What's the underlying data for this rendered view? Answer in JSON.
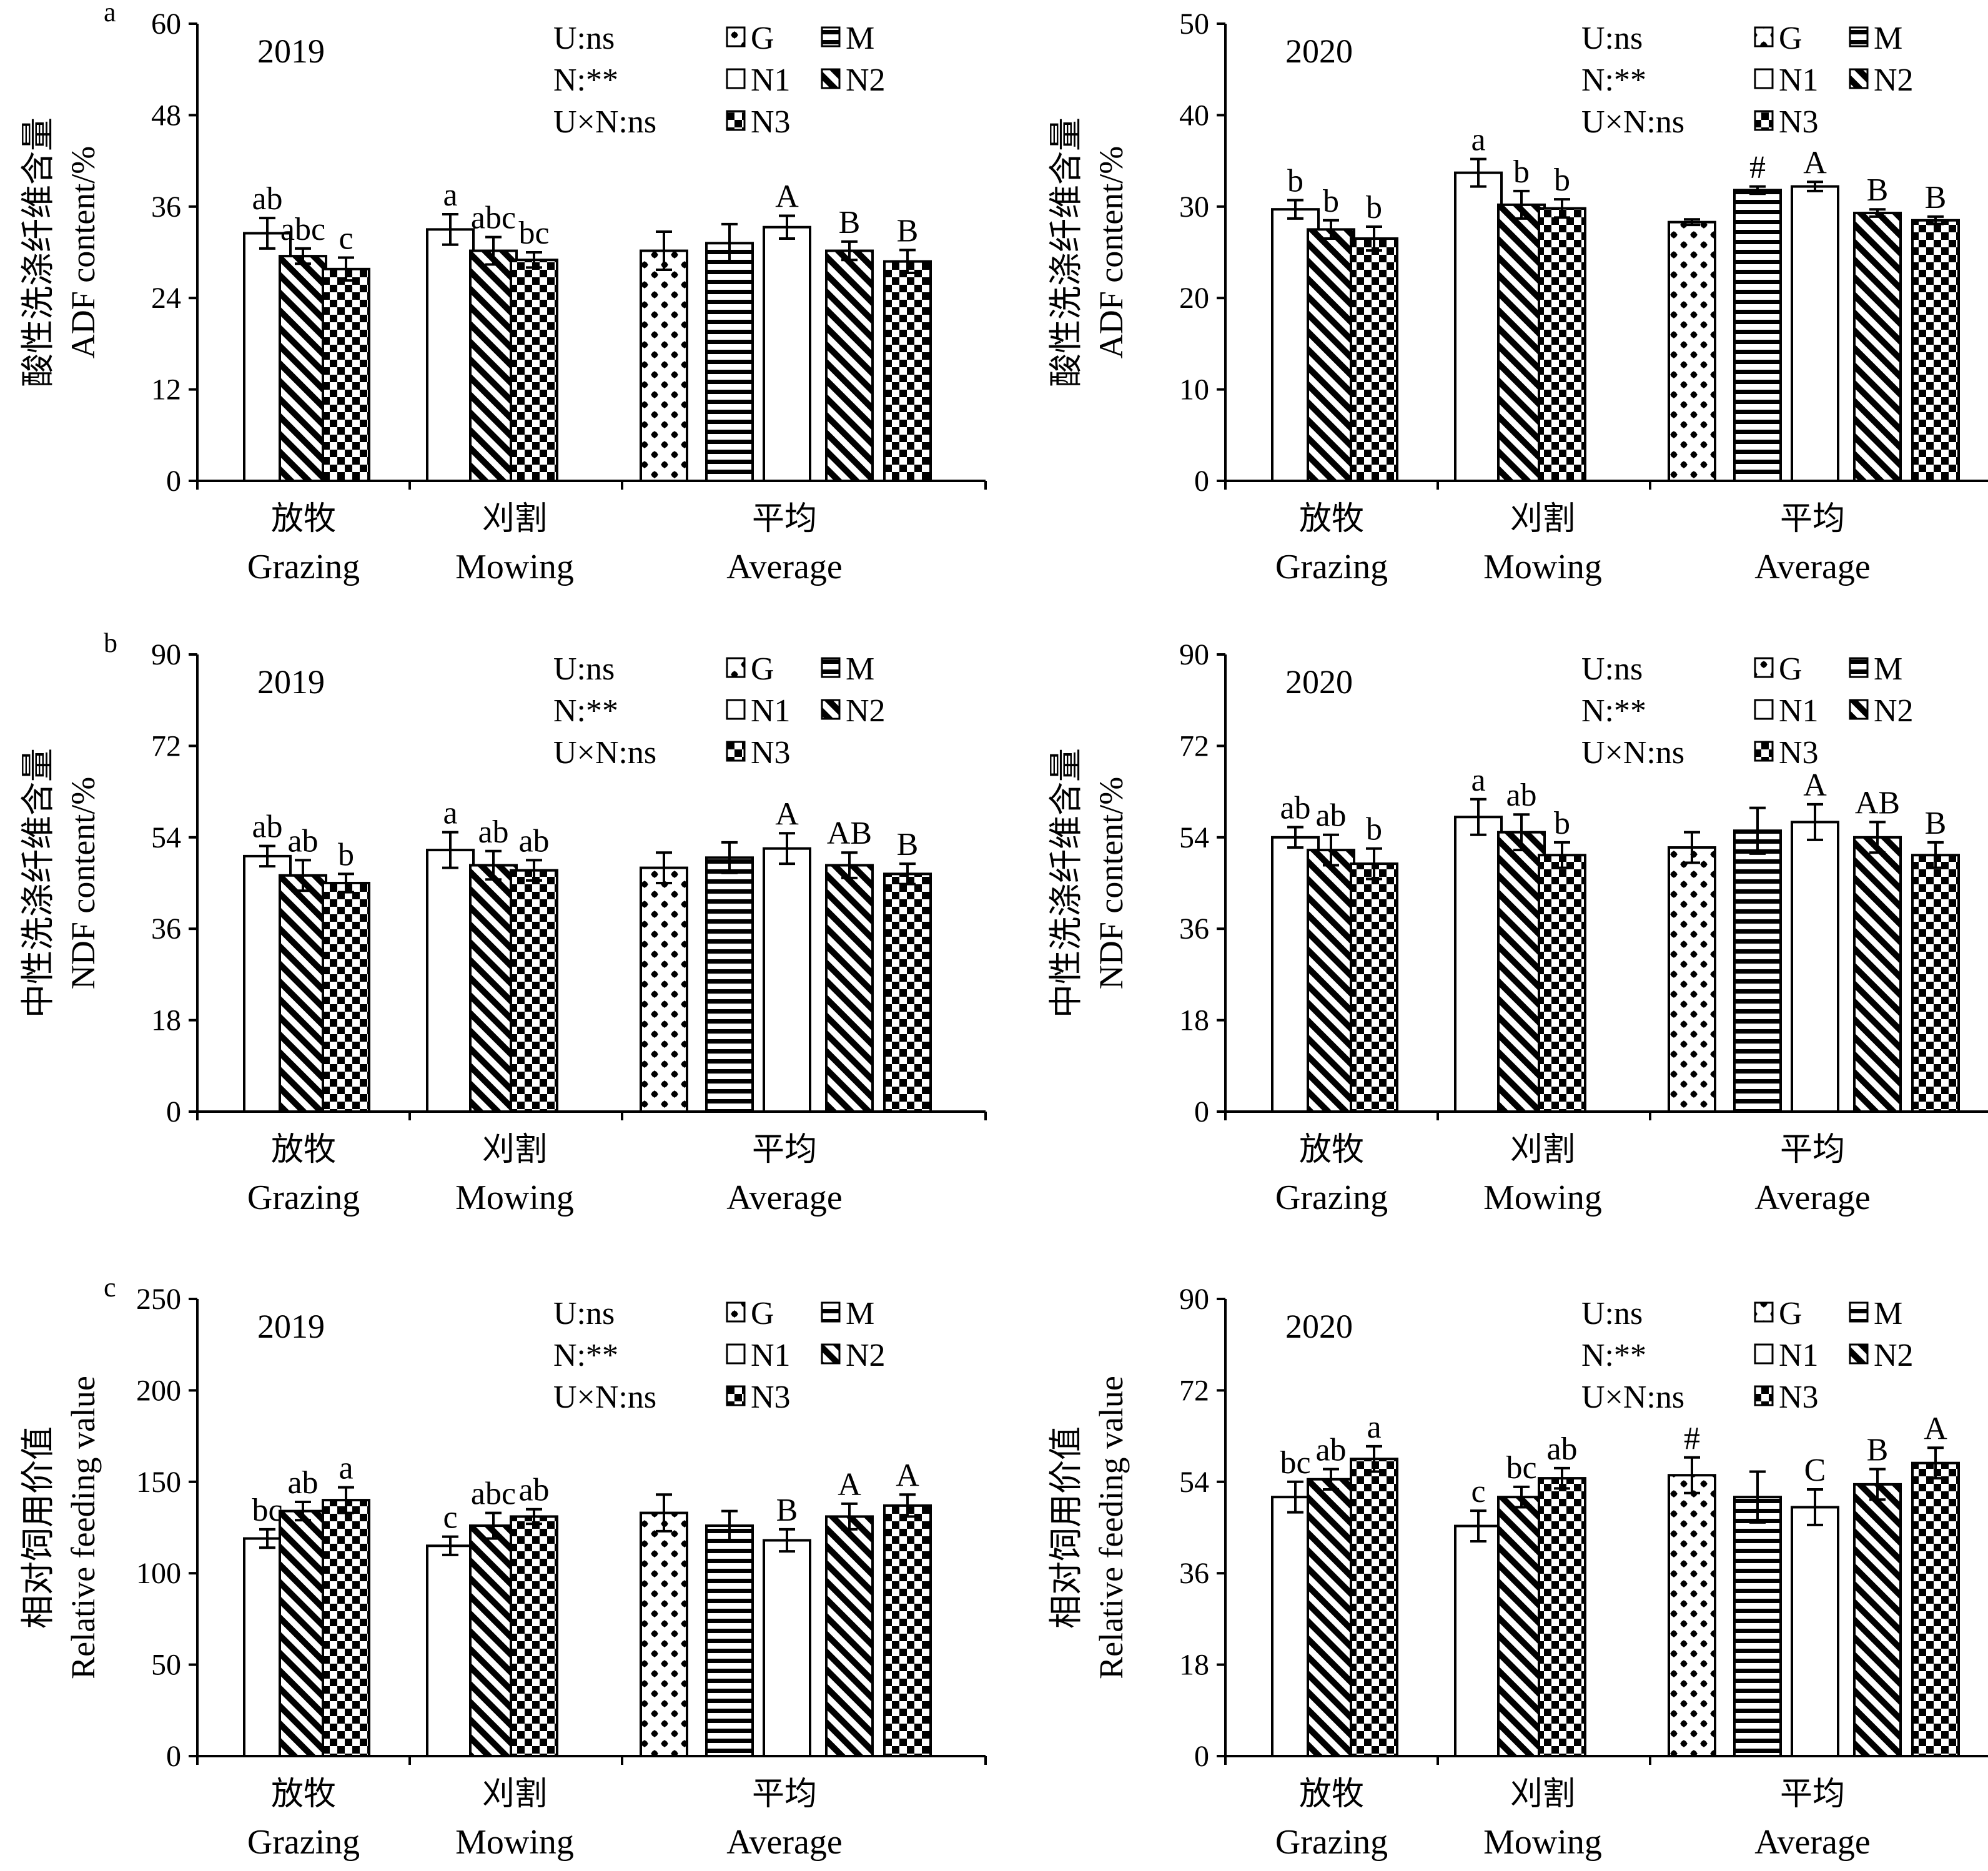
{
  "figure": {
    "legend_stats": [
      "U:ns",
      "N:**",
      "U×N:ns"
    ],
    "legend_items": [
      {
        "key": "G",
        "pattern": "dots"
      },
      {
        "key": "M",
        "pattern": "hlines"
      },
      {
        "key": "N1",
        "pattern": "white"
      },
      {
        "key": "N2",
        "pattern": "diag"
      },
      {
        "key": "N3",
        "pattern": "check"
      }
    ],
    "groups": [
      {
        "cn": "放牧",
        "en": "Grazing"
      },
      {
        "cn": "刈割",
        "en": "Mowing"
      },
      {
        "cn": "平均",
        "en": "Average"
      }
    ]
  },
  "chart_data": [
    {
      "type": "bar",
      "panel_label": "a",
      "year": "2019",
      "ylabel_cn": "酸性洗涤纤维含量",
      "ylabel_en": "ADF content/%",
      "ylim": [
        0,
        60
      ],
      "yticks": [
        0,
        12,
        24,
        36,
        48,
        60
      ],
      "categories": [
        "Grazing",
        "Mowing",
        "Average"
      ],
      "series": [
        {
          "name": "Grazing-N1",
          "pattern": "white",
          "value": 32.5,
          "error": 2.0,
          "label": "ab"
        },
        {
          "name": "Grazing-N2",
          "pattern": "diag",
          "value": 29.5,
          "error": 1.0,
          "label": "abc"
        },
        {
          "name": "Grazing-N3",
          "pattern": "check",
          "value": 27.8,
          "error": 1.5,
          "label": "c"
        },
        {
          "name": "Mowing-N1",
          "pattern": "white",
          "value": 33.0,
          "error": 2.0,
          "label": "a"
        },
        {
          "name": "Mowing-N2",
          "pattern": "diag",
          "value": 30.2,
          "error": 1.8,
          "label": "abc"
        },
        {
          "name": "Mowing-N3",
          "pattern": "check",
          "value": 29.0,
          "error": 1.0,
          "label": "bc"
        },
        {
          "name": "Average-G",
          "pattern": "dots",
          "value": 30.2,
          "error": 2.5,
          "label": ""
        },
        {
          "name": "Average-M",
          "pattern": "hlines",
          "value": 31.2,
          "error": 2.5,
          "label": ""
        },
        {
          "name": "Average-N1",
          "pattern": "white",
          "value": 33.3,
          "error": 1.5,
          "label": "A"
        },
        {
          "name": "Average-N2",
          "pattern": "diag",
          "value": 30.2,
          "error": 1.2,
          "label": "B"
        },
        {
          "name": "Average-N3",
          "pattern": "check",
          "value": 28.8,
          "error": 1.5,
          "label": "B"
        }
      ]
    },
    {
      "type": "bar",
      "panel_label": "",
      "year": "2020",
      "ylabel_cn": "酸性洗涤纤维含量",
      "ylabel_en": "ADF content/%",
      "ylim": [
        0,
        50
      ],
      "yticks": [
        0,
        10,
        20,
        30,
        40,
        50
      ],
      "categories": [
        "Grazing",
        "Mowing",
        "Average"
      ],
      "series": [
        {
          "name": "Grazing-N1",
          "pattern": "white",
          "value": 29.7,
          "error": 1.0,
          "label": "b"
        },
        {
          "name": "Grazing-N2",
          "pattern": "diag",
          "value": 27.5,
          "error": 1.0,
          "label": "b"
        },
        {
          "name": "Grazing-N3",
          "pattern": "check",
          "value": 26.5,
          "error": 1.3,
          "label": "b"
        },
        {
          "name": "Mowing-N1",
          "pattern": "white",
          "value": 33.7,
          "error": 1.5,
          "label": "a"
        },
        {
          "name": "Mowing-N2",
          "pattern": "diag",
          "value": 30.2,
          "error": 1.5,
          "label": "b"
        },
        {
          "name": "Mowing-N3",
          "pattern": "check",
          "value": 29.8,
          "error": 1.0,
          "label": "b"
        },
        {
          "name": "Average-G",
          "pattern": "dots",
          "value": 28.3,
          "error": 0.3,
          "label": ""
        },
        {
          "name": "Average-M",
          "pattern": "hlines",
          "value": 31.8,
          "error": 0.4,
          "label": "#"
        },
        {
          "name": "Average-N1",
          "pattern": "white",
          "value": 32.2,
          "error": 0.5,
          "label": "A"
        },
        {
          "name": "Average-N2",
          "pattern": "diag",
          "value": 29.3,
          "error": 0.4,
          "label": "B"
        },
        {
          "name": "Average-N3",
          "pattern": "check",
          "value": 28.5,
          "error": 0.4,
          "label": "B"
        }
      ]
    },
    {
      "type": "bar",
      "panel_label": "b",
      "year": "2019",
      "ylabel_cn": "中性洗涤纤维含量",
      "ylabel_en": "NDF content/%",
      "ylim": [
        0,
        90
      ],
      "yticks": [
        0,
        18,
        36,
        54,
        72,
        90
      ],
      "categories": [
        "Grazing",
        "Mowing",
        "Average"
      ],
      "series": [
        {
          "name": "Grazing-N1",
          "pattern": "white",
          "value": 50.3,
          "error": 2.0,
          "label": "ab"
        },
        {
          "name": "Grazing-N2",
          "pattern": "diag",
          "value": 46.5,
          "error": 3.0,
          "label": "ab"
        },
        {
          "name": "Grazing-N3",
          "pattern": "check",
          "value": 45.0,
          "error": 1.8,
          "label": "b"
        },
        {
          "name": "Mowing-N1",
          "pattern": "white",
          "value": 51.5,
          "error": 3.5,
          "label": "a"
        },
        {
          "name": "Mowing-N2",
          "pattern": "diag",
          "value": 48.5,
          "error": 2.8,
          "label": "ab"
        },
        {
          "name": "Mowing-N3",
          "pattern": "check",
          "value": 47.5,
          "error": 2.0,
          "label": "ab"
        },
        {
          "name": "Average-G",
          "pattern": "dots",
          "value": 48.0,
          "error": 3.0,
          "label": ""
        },
        {
          "name": "Average-M",
          "pattern": "hlines",
          "value": 50.0,
          "error": 3.0,
          "label": ""
        },
        {
          "name": "Average-N1",
          "pattern": "white",
          "value": 51.8,
          "error": 3.0,
          "label": "A"
        },
        {
          "name": "Average-N2",
          "pattern": "diag",
          "value": 48.5,
          "error": 2.5,
          "label": "AB"
        },
        {
          "name": "Average-N3",
          "pattern": "check",
          "value": 46.8,
          "error": 2.0,
          "label": "B"
        }
      ]
    },
    {
      "type": "bar",
      "panel_label": "",
      "year": "2020",
      "ylabel_cn": "中性洗涤纤维含量",
      "ylabel_en": "NDF content/%",
      "ylim": [
        0,
        90
      ],
      "yticks": [
        0,
        18,
        36,
        54,
        72,
        90
      ],
      "categories": [
        "Grazing",
        "Mowing",
        "Average"
      ],
      "series": [
        {
          "name": "Grazing-N1",
          "pattern": "white",
          "value": 54.0,
          "error": 2.0,
          "label": "ab"
        },
        {
          "name": "Grazing-N2",
          "pattern": "diag",
          "value": 51.5,
          "error": 3.0,
          "label": "ab"
        },
        {
          "name": "Grazing-N3",
          "pattern": "check",
          "value": 48.8,
          "error": 3.0,
          "label": "b"
        },
        {
          "name": "Mowing-N1",
          "pattern": "white",
          "value": 58.0,
          "error": 3.5,
          "label": "a"
        },
        {
          "name": "Mowing-N2",
          "pattern": "diag",
          "value": 55.0,
          "error": 3.5,
          "label": "ab"
        },
        {
          "name": "Mowing-N3",
          "pattern": "check",
          "value": 50.5,
          "error": 2.5,
          "label": "b"
        },
        {
          "name": "Average-G",
          "pattern": "dots",
          "value": 52.0,
          "error": 3.0,
          "label": ""
        },
        {
          "name": "Average-M",
          "pattern": "hlines",
          "value": 55.3,
          "error": 4.5,
          "label": ""
        },
        {
          "name": "Average-N1",
          "pattern": "white",
          "value": 57.0,
          "error": 3.5,
          "label": "A"
        },
        {
          "name": "Average-N2",
          "pattern": "diag",
          "value": 54.0,
          "error": 3.0,
          "label": "AB"
        },
        {
          "name": "Average-N3",
          "pattern": "check",
          "value": 50.5,
          "error": 2.5,
          "label": "B"
        }
      ]
    },
    {
      "type": "bar",
      "panel_label": "c",
      "year": "2019",
      "ylabel_cn": "相对饲用价值",
      "ylabel_en": "Relative feeding value",
      "ylim": [
        0,
        250
      ],
      "yticks": [
        0,
        50,
        100,
        150,
        200,
        250
      ],
      "categories": [
        "Grazing",
        "Mowing",
        "Average"
      ],
      "series": [
        {
          "name": "Grazing-N1",
          "pattern": "white",
          "value": 119,
          "error": 5,
          "label": "bc"
        },
        {
          "name": "Grazing-N2",
          "pattern": "diag",
          "value": 134,
          "error": 5,
          "label": "ab"
        },
        {
          "name": "Grazing-N3",
          "pattern": "check",
          "value": 140,
          "error": 7,
          "label": "a"
        },
        {
          "name": "Mowing-N1",
          "pattern": "white",
          "value": 115,
          "error": 5,
          "label": "c"
        },
        {
          "name": "Mowing-N2",
          "pattern": "diag",
          "value": 126,
          "error": 7,
          "label": "abc"
        },
        {
          "name": "Mowing-N3",
          "pattern": "check",
          "value": 131,
          "error": 4,
          "label": "ab"
        },
        {
          "name": "Average-G",
          "pattern": "dots",
          "value": 133,
          "error": 10,
          "label": ""
        },
        {
          "name": "Average-M",
          "pattern": "hlines",
          "value": 126,
          "error": 8,
          "label": ""
        },
        {
          "name": "Average-N1",
          "pattern": "white",
          "value": 118,
          "error": 6,
          "label": "B"
        },
        {
          "name": "Average-N2",
          "pattern": "diag",
          "value": 131,
          "error": 7,
          "label": "A"
        },
        {
          "name": "Average-N3",
          "pattern": "check",
          "value": 137,
          "error": 6,
          "label": "A"
        }
      ]
    },
    {
      "type": "bar",
      "panel_label": "",
      "year": "2020",
      "ylabel_cn": "相对饲用价值",
      "ylabel_en": "Relative feeding value",
      "ylim": [
        0,
        90
      ],
      "yticks": [
        0,
        18,
        36,
        54,
        72,
        90
      ],
      "categories": [
        "Grazing",
        "Mowing",
        "Average"
      ],
      "series": [
        {
          "name": "Grazing-N1",
          "pattern": "white",
          "value": 51.0,
          "error": 3.0,
          "label": "bc"
        },
        {
          "name": "Grazing-N2",
          "pattern": "diag",
          "value": 54.5,
          "error": 2.0,
          "label": "ab"
        },
        {
          "name": "Grazing-N3",
          "pattern": "check",
          "value": 58.5,
          "error": 2.5,
          "label": "a"
        },
        {
          "name": "Mowing-N1",
          "pattern": "white",
          "value": 45.3,
          "error": 3.0,
          "label": "c"
        },
        {
          "name": "Mowing-N2",
          "pattern": "diag",
          "value": 51.0,
          "error": 2.0,
          "label": "bc"
        },
        {
          "name": "Mowing-N3",
          "pattern": "check",
          "value": 54.7,
          "error": 2.0,
          "label": "ab"
        },
        {
          "name": "Average-G",
          "pattern": "dots",
          "value": 55.3,
          "error": 3.5,
          "label": "#"
        },
        {
          "name": "Average-M",
          "pattern": "hlines",
          "value": 51.0,
          "error": 5.0,
          "label": ""
        },
        {
          "name": "Average-N1",
          "pattern": "white",
          "value": 49.0,
          "error": 3.5,
          "label": "C"
        },
        {
          "name": "Average-N2",
          "pattern": "diag",
          "value": 53.5,
          "error": 3.0,
          "label": "B"
        },
        {
          "name": "Average-N3",
          "pattern": "check",
          "value": 57.7,
          "error": 3.0,
          "label": "A"
        }
      ]
    }
  ]
}
